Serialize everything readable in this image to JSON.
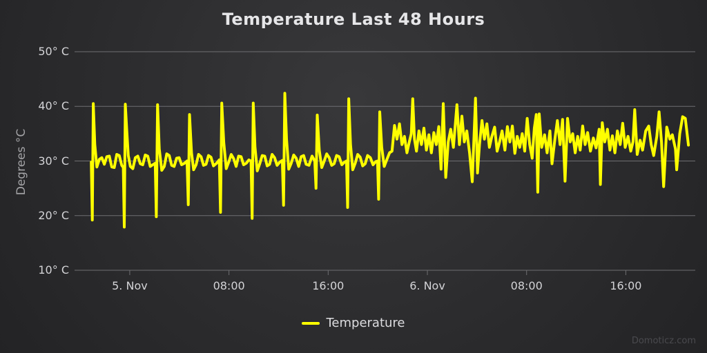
{
  "title": "Temperature Last 48 Hours",
  "legend": {
    "label": "Temperature"
  },
  "credits": "Domoticz.com",
  "colors": {
    "series": "#ffff00",
    "grid": "#6f6f72",
    "tick": "#6f6f72",
    "axis_label": "#d4d4d7",
    "axis_title": "#a4a4a7",
    "title_text": "#e6e6e8",
    "legend_text": "#dcdcdf",
    "credits_text": "#4a4a4e"
  },
  "chart_data": {
    "type": "line",
    "title": "Temperature Last 48 Hours",
    "xlabel": "",
    "ylabel": "Degrees °C",
    "x_unit": "hours from 5. Nov 00:00",
    "xlim": [
      -4.45,
      45.6
    ],
    "ylim": [
      10,
      50
    ],
    "grid": "horizontal",
    "legend_position": "bottom-center",
    "yticks": [
      {
        "value": 50,
        "label": "50° C"
      },
      {
        "value": 40,
        "label": "40° C"
      },
      {
        "value": 30,
        "label": "30° C"
      },
      {
        "value": 20,
        "label": "20° C"
      },
      {
        "value": 10,
        "label": "10° C"
      }
    ],
    "xticks": [
      {
        "value": 0,
        "label": "5. Nov"
      },
      {
        "value": 8,
        "label": "08:00"
      },
      {
        "value": 16,
        "label": "16:00"
      },
      {
        "value": 24,
        "label": "6. Nov"
      },
      {
        "value": 32,
        "label": "08:00"
      },
      {
        "value": 40,
        "label": "16:00"
      }
    ],
    "series": [
      {
        "name": "Temperature",
        "color": "#ffff00",
        "line_width": 4,
        "points": [
          [
            -3.1,
            29.8
          ],
          [
            -3.02,
            19.2
          ],
          [
            -2.94,
            40.5
          ],
          [
            -2.82,
            33.0
          ],
          [
            -2.65,
            28.9
          ],
          [
            -2.45,
            30.3
          ],
          [
            -2.25,
            30.6
          ],
          [
            -2.05,
            29.4
          ],
          [
            -1.85,
            30.8
          ],
          [
            -1.65,
            30.9
          ],
          [
            -1.45,
            28.9
          ],
          [
            -1.25,
            28.8
          ],
          [
            -1.05,
            31.2
          ],
          [
            -0.85,
            31.0
          ],
          [
            -0.65,
            29.2
          ],
          [
            -0.52,
            28.8
          ],
          [
            -0.44,
            17.9
          ],
          [
            -0.36,
            40.4
          ],
          [
            -0.24,
            35.6
          ],
          [
            -0.12,
            31.0
          ],
          [
            0.05,
            29.0
          ],
          [
            0.25,
            28.6
          ],
          [
            0.45,
            30.6
          ],
          [
            0.65,
            30.9
          ],
          [
            0.85,
            29.5
          ],
          [
            1.05,
            29.3
          ],
          [
            1.25,
            31.1
          ],
          [
            1.45,
            30.9
          ],
          [
            1.65,
            29.0
          ],
          [
            1.85,
            29.3
          ],
          [
            2.05,
            29.6
          ],
          [
            2.14,
            19.8
          ],
          [
            2.24,
            40.3
          ],
          [
            2.38,
            32.2
          ],
          [
            2.58,
            28.3
          ],
          [
            2.78,
            29.0
          ],
          [
            2.98,
            31.3
          ],
          [
            3.18,
            31.0
          ],
          [
            3.38,
            29.2
          ],
          [
            3.58,
            29.0
          ],
          [
            3.78,
            30.5
          ],
          [
            3.98,
            30.6
          ],
          [
            4.18,
            29.3
          ],
          [
            4.42,
            29.6
          ],
          [
            4.62,
            30.0
          ],
          [
            4.72,
            22.0
          ],
          [
            4.82,
            38.5
          ],
          [
            4.98,
            31.5
          ],
          [
            5.15,
            28.4
          ],
          [
            5.35,
            29.3
          ],
          [
            5.55,
            31.2
          ],
          [
            5.75,
            30.8
          ],
          [
            5.95,
            29.2
          ],
          [
            6.15,
            29.4
          ],
          [
            6.35,
            31.0
          ],
          [
            6.55,
            30.7
          ],
          [
            6.75,
            29.1
          ],
          [
            7.0,
            29.6
          ],
          [
            7.22,
            30.2
          ],
          [
            7.32,
            20.6
          ],
          [
            7.42,
            40.6
          ],
          [
            7.58,
            33.4
          ],
          [
            7.78,
            28.6
          ],
          [
            7.98,
            29.8
          ],
          [
            8.18,
            31.2
          ],
          [
            8.38,
            30.4
          ],
          [
            8.58,
            29.0
          ],
          [
            8.78,
            30.9
          ],
          [
            8.98,
            30.8
          ],
          [
            9.18,
            29.3
          ],
          [
            9.4,
            29.6
          ],
          [
            9.6,
            30.2
          ],
          [
            9.78,
            30.0
          ],
          [
            9.87,
            19.5
          ],
          [
            9.96,
            40.6
          ],
          [
            10.1,
            32.6
          ],
          [
            10.28,
            28.2
          ],
          [
            10.48,
            29.5
          ],
          [
            10.68,
            31.0
          ],
          [
            10.88,
            30.9
          ],
          [
            11.08,
            29.1
          ],
          [
            11.28,
            29.4
          ],
          [
            11.48,
            31.2
          ],
          [
            11.68,
            30.6
          ],
          [
            11.88,
            29.2
          ],
          [
            12.1,
            29.8
          ],
          [
            12.3,
            30.1
          ],
          [
            12.4,
            21.9
          ],
          [
            12.5,
            42.4
          ],
          [
            12.64,
            34.0
          ],
          [
            12.82,
            28.5
          ],
          [
            13.02,
            29.6
          ],
          [
            13.22,
            31.1
          ],
          [
            13.42,
            30.5
          ],
          [
            13.62,
            29.0
          ],
          [
            13.82,
            30.8
          ],
          [
            14.02,
            31.0
          ],
          [
            14.22,
            29.4
          ],
          [
            14.45,
            29.2
          ],
          [
            14.7,
            30.9
          ],
          [
            14.92,
            30.0
          ],
          [
            15.02,
            25.0
          ],
          [
            15.12,
            38.4
          ],
          [
            15.28,
            32.0
          ],
          [
            15.48,
            28.8
          ],
          [
            15.68,
            30.0
          ],
          [
            15.88,
            31.3
          ],
          [
            16.08,
            30.6
          ],
          [
            16.28,
            29.2
          ],
          [
            16.48,
            29.5
          ],
          [
            16.68,
            31.0
          ],
          [
            16.88,
            30.8
          ],
          [
            17.1,
            29.3
          ],
          [
            17.32,
            29.8
          ],
          [
            17.48,
            30.0
          ],
          [
            17.57,
            21.5
          ],
          [
            17.66,
            41.4
          ],
          [
            17.8,
            33.0
          ],
          [
            17.98,
            28.4
          ],
          [
            18.18,
            29.6
          ],
          [
            18.38,
            31.2
          ],
          [
            18.58,
            30.7
          ],
          [
            18.78,
            29.1
          ],
          [
            18.98,
            29.5
          ],
          [
            19.18,
            31.0
          ],
          [
            19.4,
            30.6
          ],
          [
            19.62,
            29.3
          ],
          [
            19.84,
            29.9
          ],
          [
            19.98,
            30.0
          ],
          [
            20.07,
            23.0
          ],
          [
            20.16,
            39.0
          ],
          [
            20.32,
            32.5
          ],
          [
            20.52,
            29.0
          ],
          [
            20.72,
            30.2
          ],
          [
            20.95,
            31.5
          ],
          [
            21.15,
            31.8
          ],
          [
            21.35,
            36.5
          ],
          [
            21.55,
            34.0
          ],
          [
            21.75,
            36.8
          ],
          [
            21.95,
            33.0
          ],
          [
            22.15,
            34.5
          ],
          [
            22.35,
            31.5
          ],
          [
            22.55,
            33.6
          ],
          [
            22.7,
            35.0
          ],
          [
            22.82,
            41.4
          ],
          [
            22.96,
            34.0
          ],
          [
            23.12,
            31.8
          ],
          [
            23.32,
            35.5
          ],
          [
            23.52,
            33.0
          ],
          [
            23.72,
            36.0
          ],
          [
            23.92,
            32.0
          ],
          [
            24.12,
            34.8
          ],
          [
            24.32,
            31.5
          ],
          [
            24.52,
            35.2
          ],
          [
            24.72,
            33.0
          ],
          [
            24.92,
            36.3
          ],
          [
            25.1,
            28.5
          ],
          [
            25.28,
            40.5
          ],
          [
            25.48,
            27.0
          ],
          [
            25.68,
            33.5
          ],
          [
            25.88,
            35.8
          ],
          [
            26.1,
            32.5
          ],
          [
            26.38,
            40.3
          ],
          [
            26.58,
            33.0
          ],
          [
            26.78,
            38.2
          ],
          [
            26.98,
            33.5
          ],
          [
            27.18,
            35.5
          ],
          [
            27.4,
            31.5
          ],
          [
            27.62,
            26.2
          ],
          [
            27.88,
            41.5
          ],
          [
            28.04,
            27.8
          ],
          [
            28.2,
            33.0
          ],
          [
            28.4,
            37.4
          ],
          [
            28.6,
            34.0
          ],
          [
            28.8,
            36.8
          ],
          [
            29.0,
            32.5
          ],
          [
            29.2,
            34.5
          ],
          [
            29.42,
            36.2
          ],
          [
            29.62,
            31.8
          ],
          [
            29.82,
            33.5
          ],
          [
            30.02,
            35.5
          ],
          [
            30.25,
            32.0
          ],
          [
            30.45,
            36.3
          ],
          [
            30.65,
            33.5
          ],
          [
            30.85,
            36.4
          ],
          [
            31.05,
            31.4
          ],
          [
            31.25,
            34.5
          ],
          [
            31.45,
            32.5
          ],
          [
            31.65,
            35.0
          ],
          [
            31.85,
            31.8
          ],
          [
            32.05,
            37.8
          ],
          [
            32.25,
            33.0
          ],
          [
            32.45,
            30.5
          ],
          [
            32.62,
            36.0
          ],
          [
            32.78,
            38.5
          ],
          [
            32.9,
            24.3
          ],
          [
            33.02,
            38.6
          ],
          [
            33.22,
            32.5
          ],
          [
            33.45,
            34.8
          ],
          [
            33.65,
            31.5
          ],
          [
            33.88,
            35.5
          ],
          [
            34.05,
            29.5
          ],
          [
            34.28,
            34.0
          ],
          [
            34.48,
            37.4
          ],
          [
            34.7,
            33.0
          ],
          [
            34.9,
            37.6
          ],
          [
            35.1,
            26.3
          ],
          [
            35.3,
            37.8
          ],
          [
            35.52,
            33.5
          ],
          [
            35.72,
            35.0
          ],
          [
            35.92,
            31.5
          ],
          [
            36.12,
            34.5
          ],
          [
            36.32,
            32.0
          ],
          [
            36.52,
            36.4
          ],
          [
            36.72,
            33.0
          ],
          [
            36.92,
            35.2
          ],
          [
            37.15,
            31.8
          ],
          [
            37.38,
            34.2
          ],
          [
            37.6,
            32.4
          ],
          [
            37.85,
            35.8
          ],
          [
            37.95,
            25.7
          ],
          [
            38.1,
            37.0
          ],
          [
            38.3,
            33.5
          ],
          [
            38.52,
            35.8
          ],
          [
            38.72,
            32.0
          ],
          [
            38.92,
            34.6
          ],
          [
            39.12,
            31.5
          ],
          [
            39.32,
            35.5
          ],
          [
            39.55,
            33.0
          ],
          [
            39.75,
            36.9
          ],
          [
            39.95,
            32.5
          ],
          [
            40.18,
            34.5
          ],
          [
            40.4,
            31.8
          ],
          [
            40.58,
            33.5
          ],
          [
            40.72,
            39.4
          ],
          [
            40.92,
            31.2
          ],
          [
            41.15,
            33.8
          ],
          [
            41.35,
            32.0
          ],
          [
            41.6,
            35.5
          ],
          [
            41.85,
            36.4
          ],
          [
            42.05,
            33.0
          ],
          [
            42.25,
            31.0
          ],
          [
            42.5,
            34.5
          ],
          [
            42.68,
            39.0
          ],
          [
            42.88,
            33.5
          ],
          [
            43.05,
            25.3
          ],
          [
            43.3,
            36.2
          ],
          [
            43.55,
            34.0
          ],
          [
            43.75,
            34.8
          ],
          [
            44.0,
            32.2
          ],
          [
            44.1,
            28.4
          ],
          [
            44.35,
            35.0
          ],
          [
            44.58,
            38.1
          ],
          [
            44.8,
            37.8
          ],
          [
            45.05,
            32.9
          ]
        ]
      }
    ]
  }
}
